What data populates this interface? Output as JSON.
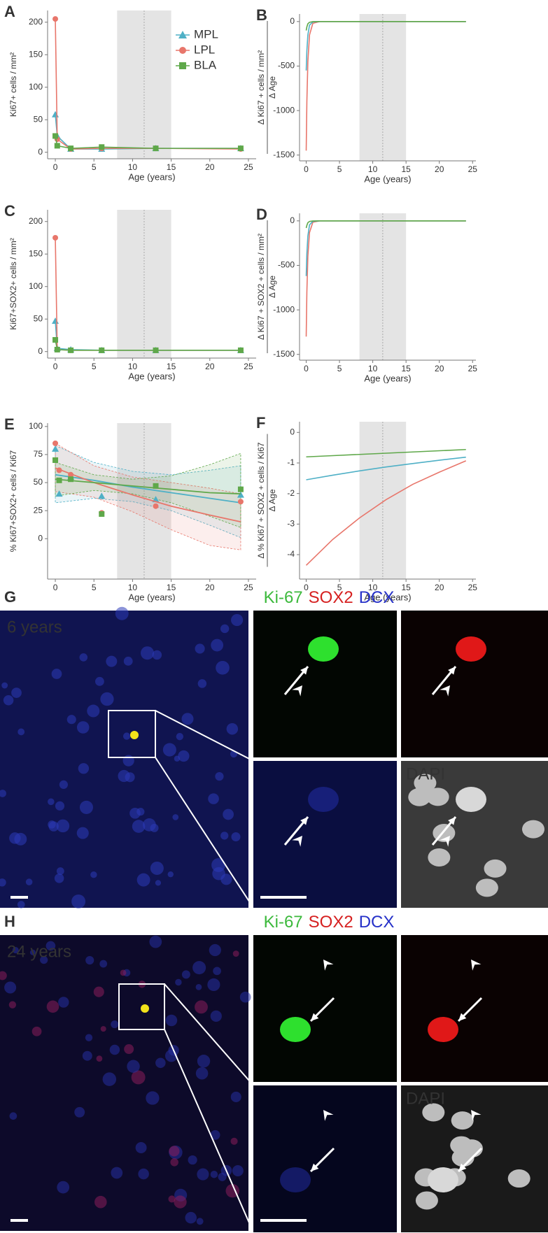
{
  "chart_data": [
    {
      "label": "A",
      "type": "line",
      "xlabel": "Age (years)",
      "ylabel": "Ki67+ cells / mm²",
      "xlim": [
        -1,
        26
      ],
      "xticks": [
        0,
        5,
        10,
        15,
        20,
        25
      ],
      "ylim": [
        -10,
        218
      ],
      "yticks": [
        0,
        50,
        100,
        150,
        200
      ],
      "shade": [
        8,
        15
      ],
      "vline": 11.5,
      "legend": "top-right",
      "x": [
        0,
        0.25,
        2,
        6,
        13,
        24
      ],
      "series": [
        {
          "name": "MPL",
          "color": "#4fb0c6",
          "marker": "triangle",
          "values": [
            58,
            25,
            5,
            5,
            6,
            6
          ]
        },
        {
          "name": "LPL",
          "color": "#e8766b",
          "marker": "circle",
          "values": [
            205,
            20,
            5,
            6,
            6,
            5
          ]
        },
        {
          "name": "BLA",
          "color": "#5fa84a",
          "marker": "square",
          "values": [
            25,
            10,
            6,
            8,
            6,
            6
          ]
        }
      ]
    },
    {
      "label": "B",
      "type": "line",
      "xlabel": "Age (years)",
      "ylabel": "Δ Ki67 + cells / mm²",
      "ylabel_denominator": "Δ Age",
      "xlim": [
        -1,
        25.5
      ],
      "xticks": [
        0,
        5,
        10,
        15,
        20,
        25
      ],
      "ylim": [
        -1565,
        85
      ],
      "yticks": [
        -1500,
        -1000,
        -500,
        0
      ],
      "shade": [
        8,
        15
      ],
      "vline": 11.5,
      "x": [
        0,
        0.1,
        0.25,
        0.5,
        1,
        2,
        5,
        10,
        15,
        20,
        24
      ],
      "series": [
        {
          "color": "#e8766b",
          "values": [
            -1450,
            -900,
            -450,
            -150,
            -20,
            0,
            0,
            0,
            0,
            0,
            0
          ]
        },
        {
          "color": "#4fb0c6",
          "values": [
            -550,
            -330,
            -150,
            -40,
            -5,
            0,
            0,
            0,
            0,
            0,
            0
          ]
        },
        {
          "color": "#5fa84a",
          "values": [
            -100,
            -60,
            -25,
            -8,
            -1,
            0,
            0,
            0,
            0,
            0,
            0
          ]
        }
      ]
    },
    {
      "label": "C",
      "type": "line",
      "xlabel": "Age (years)",
      "ylabel": "Ki67+SOX2+ cells / mm²",
      "xlim": [
        -1,
        26
      ],
      "xticks": [
        0,
        5,
        10,
        15,
        20,
        25
      ],
      "ylim": [
        -10,
        218
      ],
      "yticks": [
        0,
        50,
        100,
        150,
        200
      ],
      "shade": [
        8,
        15
      ],
      "vline": 11.5,
      "x": [
        0,
        0.25,
        2,
        6,
        13,
        24
      ],
      "series": [
        {
          "color": "#4fb0c6",
          "marker": "triangle",
          "values": [
            47,
            5,
            3,
            2,
            2,
            2
          ]
        },
        {
          "color": "#e8766b",
          "marker": "circle",
          "values": [
            175,
            3,
            2,
            2,
            2,
            2
          ]
        },
        {
          "color": "#5fa84a",
          "marker": "square",
          "values": [
            18,
            3,
            2,
            2,
            2,
            2
          ]
        }
      ]
    },
    {
      "label": "D",
      "type": "line",
      "xlabel": "Age (years)",
      "ylabel": "Δ Ki67 + SOX2 + cells / mm²",
      "ylabel_denominator": "Δ Age",
      "xlim": [
        -1,
        25.5
      ],
      "xticks": [
        0,
        5,
        10,
        15,
        20,
        25
      ],
      "ylim": [
        -1565,
        85
      ],
      "yticks": [
        -1500,
        -1000,
        -500,
        0
      ],
      "shade": [
        8,
        15
      ],
      "vline": 11.5,
      "x": [
        0,
        0.1,
        0.25,
        0.5,
        1,
        2,
        5,
        10,
        15,
        20,
        24
      ],
      "series": [
        {
          "color": "#e8766b",
          "values": [
            -1300,
            -800,
            -400,
            -130,
            -15,
            0,
            0,
            0,
            0,
            0,
            0
          ]
        },
        {
          "color": "#4fb0c6",
          "values": [
            -620,
            -370,
            -170,
            -45,
            -5,
            0,
            0,
            0,
            0,
            0,
            0
          ]
        },
        {
          "color": "#5fa84a",
          "values": [
            -80,
            -50,
            -20,
            -6,
            -1,
            0,
            0,
            0,
            0,
            0,
            0
          ]
        }
      ]
    },
    {
      "label": "E",
      "type": "scatter",
      "xlabel": "Age (years)",
      "ylabel": "% Ki67+SOX2+ cells / Ki67",
      "xlim": [
        -1,
        26
      ],
      "xticks": [
        0,
        5,
        10,
        15,
        20,
        25
      ],
      "ylim": [
        -36,
        103
      ],
      "yticks": [
        0,
        25,
        50,
        75,
        100
      ],
      "shade": [
        8,
        15
      ],
      "vline": 11.5,
      "x": [
        0,
        0.5,
        2,
        6,
        13,
        24
      ],
      "fit_x": [
        0,
        5,
        10,
        15,
        20,
        24
      ],
      "series": [
        {
          "color": "#4fb0c6",
          "marker": "triangle",
          "values": [
            80,
            40,
            55,
            38,
            35,
            39
          ],
          "fit": [
            57,
            52,
            46,
            41,
            36,
            32
          ],
          "fit_lower": [
            32,
            36,
            33,
            25,
            12,
            1
          ],
          "fit_upper": [
            83,
            68,
            60,
            57,
            61,
            65
          ]
        },
        {
          "color": "#e8766b",
          "marker": "circle",
          "values": [
            85,
            61,
            57,
            23,
            29,
            33
          ],
          "fit": [
            63,
            50,
            39,
            29,
            21,
            15
          ],
          "fit_lower": [
            42,
            37,
            24,
            8,
            -6,
            -10
          ],
          "fit_upper": [
            85,
            65,
            55,
            50,
            45,
            40
          ]
        },
        {
          "color": "#5fa84a",
          "marker": "square",
          "values": [
            70,
            52,
            53,
            22,
            47,
            44
          ],
          "fit": [
            53,
            50,
            47,
            44,
            41,
            40
          ],
          "fit_lower": [
            38,
            43,
            40,
            32,
            20,
            10
          ],
          "fit_upper": [
            68,
            57,
            53,
            56,
            66,
            76
          ]
        }
      ]
    },
    {
      "label": "F",
      "type": "line",
      "xlabel": "Age (years)",
      "ylabel": "Δ % Ki67 + SOX2 + cells / Ki67",
      "ylabel_denominator": "Δ Age",
      "xlim": [
        -1,
        25.5
      ],
      "xticks": [
        0,
        5,
        10,
        15,
        20,
        25
      ],
      "ylim": [
        -4.8,
        0.35
      ],
      "yticks": [
        0,
        -1,
        -2,
        -3,
        -4
      ],
      "shade": [
        8,
        15
      ],
      "vline": 11.5,
      "x": [
        0,
        4,
        8,
        12,
        16,
        20,
        24
      ],
      "series": [
        {
          "color": "#e8766b",
          "values": [
            -4.35,
            -3.5,
            -2.8,
            -2.2,
            -1.7,
            -1.3,
            -0.93
          ]
        },
        {
          "color": "#4fb0c6",
          "values": [
            -1.55,
            -1.4,
            -1.26,
            -1.13,
            -1.02,
            -0.91,
            -0.81
          ]
        },
        {
          "color": "#5fa84a",
          "values": [
            -0.8,
            -0.76,
            -0.72,
            -0.68,
            -0.64,
            -0.6,
            -0.56
          ]
        }
      ]
    }
  ],
  "micrographs": [
    {
      "label": "G",
      "stains": [
        {
          "text": "Ki-67",
          "color": "#3cb93c"
        },
        {
          "text": "SOX2",
          "color": "#d62020"
        },
        {
          "text": "DCX",
          "color": "#2530c8"
        }
      ],
      "age": "6 years",
      "channel": "DAPI"
    },
    {
      "label": "H",
      "stains": [
        {
          "text": "Ki-67",
          "color": "#3cb93c"
        },
        {
          "text": "SOX2",
          "color": "#d62020"
        },
        {
          "text": "DCX",
          "color": "#2530c8"
        }
      ],
      "age": "24 years",
      "channel": "DAPI"
    }
  ]
}
